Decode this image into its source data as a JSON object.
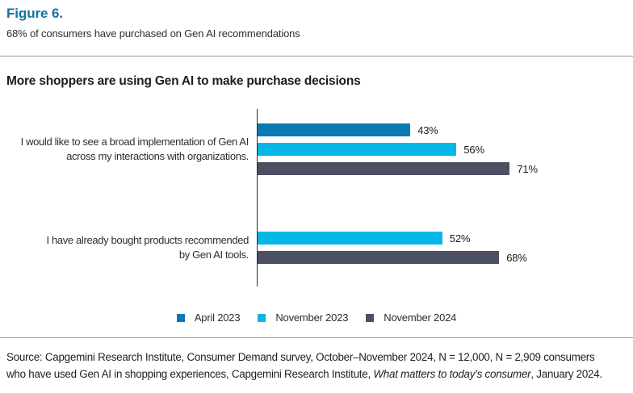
{
  "figure": {
    "label": "Figure 6.",
    "subtitle": "68% of consumers have purchased on Gen AI recommendations"
  },
  "chart": {
    "title": "More shoppers are using Gen AI to make purchase decisions"
  },
  "chart_data": {
    "type": "bar",
    "orientation": "horizontal",
    "title": "More shoppers are using Gen AI to make purchase decisions",
    "categories": [
      "I would like to see a broad implementation of Gen AI\nacross my interactions with organizations.",
      "I have already bought products recommended\nby Gen AI tools."
    ],
    "series": [
      {
        "name": "April 2023",
        "color": "#0b7ab3",
        "values": [
          43,
          null
        ]
      },
      {
        "name": "November 2023",
        "color": "#04b7e5",
        "values": [
          56,
          52
        ]
      },
      {
        "name": "November 2024",
        "color": "#4d5063",
        "values": [
          71,
          68
        ]
      }
    ],
    "value_suffix": "%",
    "xlim": [
      0,
      100
    ],
    "grid": false,
    "legend_position": "bottom",
    "data_labels": [
      "43%",
      "56%",
      "71%",
      "52%",
      "68%"
    ]
  },
  "source": {
    "line1": "Source: Capgemini Research Institute, Consumer Demand survey, October–November 2024, N = 12,000, N = 2,909 consumers",
    "line2_before_italic": "who have used Gen AI in shopping experiences, Capgemini Research Institute, ",
    "line2_italic": "What matters to today’s consumer",
    "line2_after_italic": ", January 2024."
  },
  "colors": {
    "figure_label": "#1273a5",
    "axis": "#2b2b2b",
    "divider": "#9a9a9a",
    "april_2023": "#0b7ab3",
    "november_2023": "#04b7e5",
    "november_2024": "#4d5063"
  }
}
